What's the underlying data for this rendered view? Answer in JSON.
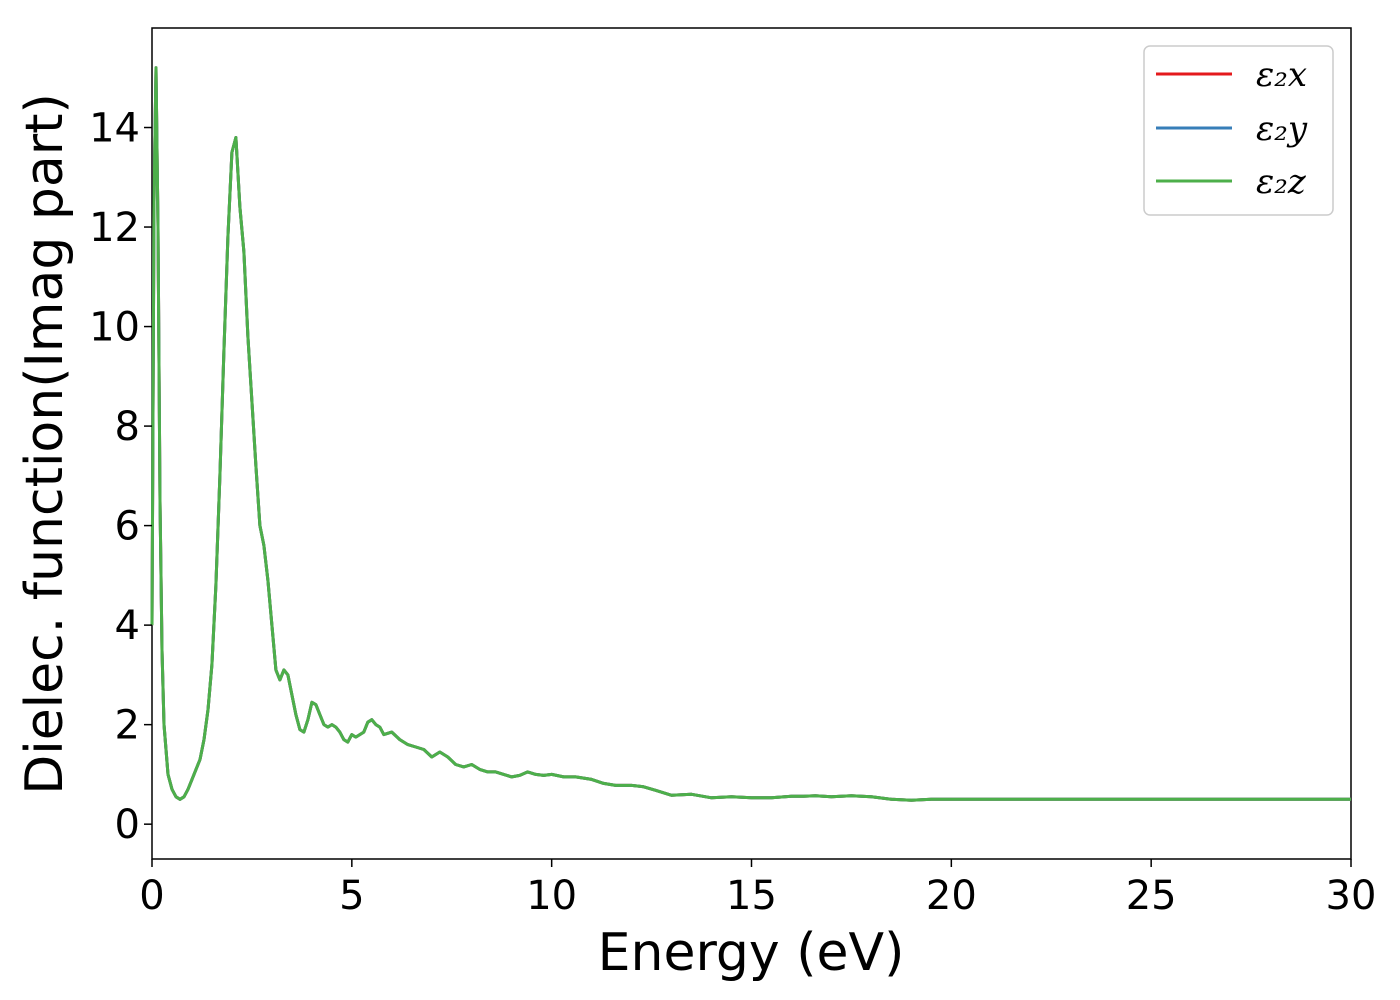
{
  "chart_data": {
    "type": "line",
    "title": "",
    "xlabel": "Energy (eV)",
    "ylabel": "Dielec. function(Imag part)",
    "xlim": [
      0,
      30
    ],
    "ylim": [
      -0.7,
      16
    ],
    "xticks": [
      0,
      5,
      10,
      15,
      20,
      25,
      30
    ],
    "yticks": [
      0,
      2,
      4,
      6,
      8,
      10,
      12,
      14
    ],
    "grid": false,
    "legend_position": "top-right",
    "x": [
      0.0,
      0.05,
      0.1,
      0.15,
      0.2,
      0.25,
      0.3,
      0.4,
      0.5,
      0.6,
      0.7,
      0.8,
      0.9,
      1.0,
      1.1,
      1.2,
      1.3,
      1.4,
      1.5,
      1.6,
      1.7,
      1.8,
      1.9,
      2.0,
      2.1,
      2.2,
      2.3,
      2.4,
      2.5,
      2.6,
      2.7,
      2.8,
      2.9,
      3.0,
      3.1,
      3.2,
      3.3,
      3.4,
      3.5,
      3.6,
      3.7,
      3.8,
      3.9,
      4.0,
      4.1,
      4.2,
      4.3,
      4.4,
      4.5,
      4.6,
      4.7,
      4.8,
      4.9,
      5.0,
      5.1,
      5.2,
      5.3,
      5.4,
      5.5,
      5.6,
      5.7,
      5.8,
      6.0,
      6.2,
      6.4,
      6.6,
      6.8,
      7.0,
      7.2,
      7.4,
      7.6,
      7.8,
      8.0,
      8.2,
      8.4,
      8.6,
      8.8,
      9.0,
      9.2,
      9.4,
      9.6,
      9.8,
      10.0,
      10.3,
      10.6,
      11.0,
      11.3,
      11.6,
      12.0,
      12.3,
      12.6,
      13.0,
      13.5,
      14.0,
      14.5,
      15.0,
      15.5,
      16.0,
      16.3,
      16.6,
      17.0,
      17.5,
      18.0,
      18.5,
      19.0,
      19.5,
      20.0,
      20.5,
      21.0,
      21.5,
      22.0,
      22.5,
      23.0,
      23.5,
      24.0,
      24.5,
      25.0,
      25.5,
      26.0,
      26.5,
      27.0,
      27.5,
      28.0,
      28.5,
      29.0,
      29.5,
      30.0
    ],
    "series": [
      {
        "name": "ε₂x",
        "color": "#e41a1c",
        "values": [
          4.0,
          12.5,
          15.2,
          12.0,
          6.5,
          3.5,
          2.0,
          1.0,
          0.7,
          0.55,
          0.5,
          0.55,
          0.7,
          0.9,
          1.1,
          1.3,
          1.7,
          2.3,
          3.2,
          4.8,
          7.0,
          9.5,
          11.8,
          13.5,
          13.8,
          12.4,
          11.5,
          9.8,
          8.5,
          7.2,
          6.0,
          5.6,
          4.9,
          4.0,
          3.1,
          2.9,
          3.1,
          3.0,
          2.6,
          2.2,
          1.9,
          1.85,
          2.1,
          2.45,
          2.4,
          2.2,
          2.0,
          1.95,
          2.0,
          1.95,
          1.85,
          1.7,
          1.65,
          1.8,
          1.75,
          1.8,
          1.85,
          2.05,
          2.1,
          2.0,
          1.95,
          1.8,
          1.85,
          1.7,
          1.6,
          1.55,
          1.5,
          1.35,
          1.45,
          1.35,
          1.2,
          1.15,
          1.2,
          1.1,
          1.05,
          1.05,
          1.0,
          0.95,
          0.98,
          1.05,
          1.0,
          0.98,
          1.0,
          0.95,
          0.95,
          0.9,
          0.82,
          0.78,
          0.78,
          0.75,
          0.68,
          0.58,
          0.6,
          0.53,
          0.55,
          0.53,
          0.53,
          0.56,
          0.56,
          0.57,
          0.55,
          0.57,
          0.55,
          0.5,
          0.48,
          0.5,
          0.5,
          0.5,
          0.5,
          0.5,
          0.5,
          0.5,
          0.5,
          0.5,
          0.5,
          0.5,
          0.5,
          0.5,
          0.5,
          0.5,
          0.5,
          0.5,
          0.5,
          0.5,
          0.5,
          0.5,
          0.5
        ]
      },
      {
        "name": "ε₂y",
        "color": "#377eb8",
        "values": [
          4.0,
          12.5,
          15.2,
          12.0,
          6.5,
          3.5,
          2.0,
          1.0,
          0.7,
          0.55,
          0.5,
          0.55,
          0.7,
          0.9,
          1.1,
          1.3,
          1.7,
          2.3,
          3.2,
          4.8,
          7.0,
          9.5,
          11.8,
          13.5,
          13.8,
          12.4,
          11.5,
          9.8,
          8.5,
          7.2,
          6.0,
          5.6,
          4.9,
          4.0,
          3.1,
          2.9,
          3.1,
          3.0,
          2.6,
          2.2,
          1.9,
          1.85,
          2.1,
          2.45,
          2.4,
          2.2,
          2.0,
          1.95,
          2.0,
          1.95,
          1.85,
          1.7,
          1.65,
          1.8,
          1.75,
          1.8,
          1.85,
          2.05,
          2.1,
          2.0,
          1.95,
          1.8,
          1.85,
          1.7,
          1.6,
          1.55,
          1.5,
          1.35,
          1.45,
          1.35,
          1.2,
          1.15,
          1.2,
          1.1,
          1.05,
          1.05,
          1.0,
          0.95,
          0.98,
          1.05,
          1.0,
          0.98,
          1.0,
          0.95,
          0.95,
          0.9,
          0.82,
          0.78,
          0.78,
          0.75,
          0.68,
          0.58,
          0.6,
          0.53,
          0.55,
          0.53,
          0.53,
          0.56,
          0.56,
          0.57,
          0.55,
          0.57,
          0.55,
          0.5,
          0.48,
          0.5,
          0.5,
          0.5,
          0.5,
          0.5,
          0.5,
          0.5,
          0.5,
          0.5,
          0.5,
          0.5,
          0.5,
          0.5,
          0.5,
          0.5,
          0.5,
          0.5,
          0.5,
          0.5,
          0.5,
          0.5,
          0.5
        ]
      },
      {
        "name": "ε₂z",
        "color": "#4daf4a",
        "values": [
          4.0,
          12.5,
          15.2,
          12.0,
          6.5,
          3.5,
          2.0,
          1.0,
          0.7,
          0.55,
          0.5,
          0.55,
          0.7,
          0.9,
          1.1,
          1.3,
          1.7,
          2.3,
          3.2,
          4.8,
          7.0,
          9.5,
          11.8,
          13.5,
          13.8,
          12.4,
          11.5,
          9.8,
          8.5,
          7.2,
          6.0,
          5.6,
          4.9,
          4.0,
          3.1,
          2.9,
          3.1,
          3.0,
          2.6,
          2.2,
          1.9,
          1.85,
          2.1,
          2.45,
          2.4,
          2.2,
          2.0,
          1.95,
          2.0,
          1.95,
          1.85,
          1.7,
          1.65,
          1.8,
          1.75,
          1.8,
          1.85,
          2.05,
          2.1,
          2.0,
          1.95,
          1.8,
          1.85,
          1.7,
          1.6,
          1.55,
          1.5,
          1.35,
          1.45,
          1.35,
          1.2,
          1.15,
          1.2,
          1.1,
          1.05,
          1.05,
          1.0,
          0.95,
          0.98,
          1.05,
          1.0,
          0.98,
          1.0,
          0.95,
          0.95,
          0.9,
          0.82,
          0.78,
          0.78,
          0.75,
          0.68,
          0.58,
          0.6,
          0.53,
          0.55,
          0.53,
          0.53,
          0.56,
          0.56,
          0.57,
          0.55,
          0.57,
          0.55,
          0.5,
          0.48,
          0.5,
          0.5,
          0.5,
          0.5,
          0.5,
          0.5,
          0.5,
          0.5,
          0.5,
          0.5,
          0.5,
          0.5,
          0.5,
          0.5,
          0.5,
          0.5,
          0.5,
          0.5,
          0.5,
          0.5,
          0.5,
          0.5
        ]
      }
    ]
  }
}
